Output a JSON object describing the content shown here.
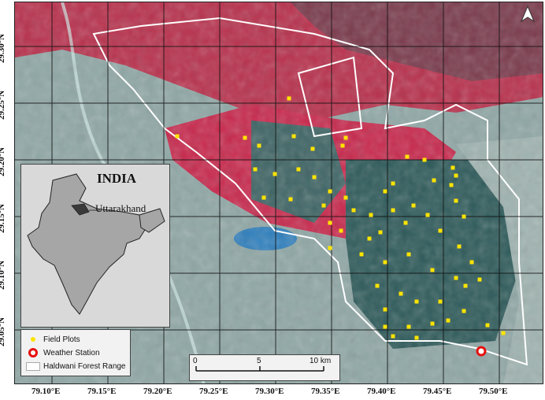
{
  "latitude_labels": [
    "29.30°N",
    "29.25°N",
    "29.20°N",
    "29.15°N",
    "29.10°N",
    "29.05°N"
  ],
  "longitude_labels": [
    "79.10°E",
    "79.15°E",
    "79.20°E",
    "79.25°E",
    "79.30°E",
    "79.35°E",
    "79.40°E",
    "79.45°E",
    "79.50°E"
  ],
  "inset": {
    "title": "INDIA",
    "state_label": "Uttarakhand",
    "country_fill": "#a6a6a6",
    "state_fill": "#3a3a3a"
  },
  "legend": {
    "items": [
      {
        "label": "Field Plots",
        "color": "#ffe400",
        "symbol": "dot"
      },
      {
        "label": "Weather Station",
        "color": "#e61010",
        "symbol": "ring"
      },
      {
        "label": "Haldwani Forest Range",
        "color": "#ffffff",
        "symbol": "box"
      }
    ]
  },
  "scale_bar": {
    "ticks": [
      "0",
      "5",
      "10 km"
    ]
  },
  "north_arrow": {
    "icon": "north-arrow-icon"
  },
  "colors": {
    "vegetation": "#c8284c",
    "forest_dark": "#2e5a5a",
    "urban": "#8fa7a5",
    "water": "#2e7fbd",
    "boundary": "#ffffff",
    "grid": "#111111"
  }
}
